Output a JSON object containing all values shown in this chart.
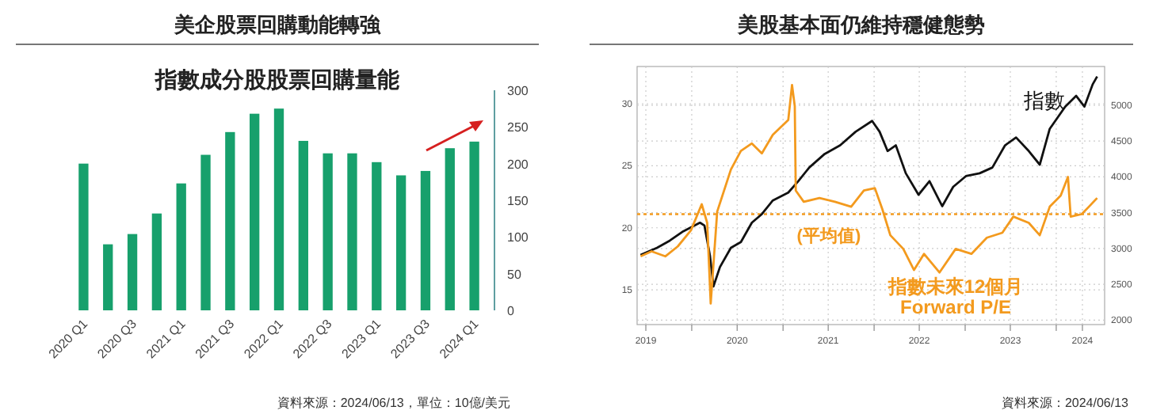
{
  "chart_data": [
    {
      "type": "bar",
      "title": "美企股票回購動能轉強",
      "subtitle": "指數成分股股票回購量能",
      "categories": [
        "2020 Q1",
        null,
        "2020 Q3",
        null,
        "2021 Q1",
        null,
        "2021 Q3",
        null,
        "2022 Q1",
        null,
        "2022 Q3",
        null,
        "2023 Q1",
        null,
        "2023 Q3",
        null,
        "2024 Q1"
      ],
      "values": [
        200,
        90,
        104,
        132,
        173,
        212,
        243,
        268,
        275,
        231,
        214,
        214,
        202,
        184,
        190,
        221,
        230
      ],
      "color": "#17a06c",
      "ylim": [
        0,
        300
      ],
      "yticks": [
        0,
        50,
        100,
        150,
        200,
        250,
        300
      ],
      "annotations": [
        "資料來源：2024/06/13，單位：10億/美元"
      ]
    },
    {
      "type": "line",
      "title": "美股基本面仍維持穩健態勢",
      "series": [
        {
          "name": "指數",
          "color": "#111111",
          "axis": "y2",
          "x": [
            "2019-06-10",
            "2019-08-15",
            "2019-10-05",
            "2019-11-28",
            "2020-02-03",
            "2020-02-21",
            "2020-03-14",
            "2020-03-28",
            "2020-04-23",
            "2020-06-06",
            "2020-07-16",
            "2020-08-29",
            "2020-10-08",
            "2020-11-21",
            "2021-01-22",
            "2021-03-03",
            "2021-04-16",
            "2021-06-17",
            "2021-08-18",
            "2021-10-19",
            "2021-12-24",
            "2022-01-23",
            "2022-02-24",
            "2022-03-29",
            "2022-05-08",
            "2022-06-28",
            "2022-08-11",
            "2022-10-01",
            "2022-11-14",
            "2023-01-04",
            "2023-02-28",
            "2023-04-20",
            "2023-06-10",
            "2023-07-24",
            "2023-09-13",
            "2023-10-27",
            "2023-12-06",
            "2024-02-06",
            "2024-03-21",
            "2024-04-23",
            "2024-05-26",
            "2024-06-13"
          ],
          "values": [
            2910,
            3010,
            3110,
            3240,
            3360,
            3320,
            2900,
            2470,
            2740,
            3010,
            3090,
            3360,
            3480,
            3670,
            3780,
            3940,
            4130,
            4320,
            4440,
            4630,
            4780,
            4630,
            4360,
            4440,
            4050,
            3750,
            3940,
            3590,
            3860,
            4010,
            4050,
            4130,
            4440,
            4550,
            4360,
            4170,
            4670,
            4980,
            5130,
            4980,
            5290,
            5400
          ]
        },
        {
          "name": "指數未來12個月 Forward P/E",
          "color": "#f39a1e",
          "x": [
            "2019-06-10",
            "2019-07-24",
            "2019-09-17",
            "2019-11-06",
            "2019-12-29",
            "2020-02-10",
            "2020-03-03",
            "2020-03-17",
            "2020-04-12",
            "2020-06-06",
            "2020-07-16",
            "2020-08-29",
            "2020-10-08",
            "2020-11-21",
            "2021-01-22",
            "2021-02-06",
            "2021-02-17",
            "2021-02-21",
            "2021-03-25",
            "2021-05-27",
            "2021-07-28",
            "2021-10-01",
            "2021-11-21",
            "2022-01-04",
            "2022-02-03",
            "2022-03-07",
            "2022-04-28",
            "2022-06-10",
            "2022-07-20",
            "2022-09-20",
            "2022-11-24",
            "2023-01-26",
            "2023-03-29",
            "2023-05-30",
            "2023-07-13",
            "2023-09-13",
            "2023-10-27",
            "2023-12-06",
            "2024-01-19",
            "2024-02-17",
            "2024-02-28",
            "2024-04-12",
            "2024-05-11",
            "2024-06-13"
          ],
          "values": [
            17.7,
            18.1,
            17.7,
            18.5,
            19.8,
            21.9,
            20.4,
            13.9,
            21.3,
            24.7,
            26.2,
            26.8,
            26.0,
            27.5,
            28.7,
            31.5,
            29.8,
            23.0,
            22.1,
            22.4,
            22.1,
            21.7,
            23.0,
            23.2,
            21.5,
            19.4,
            18.3,
            16.6,
            17.9,
            16.4,
            18.3,
            17.9,
            19.2,
            19.6,
            20.9,
            20.4,
            19.4,
            21.7,
            22.6,
            24.1,
            20.9,
            21.1,
            21.7,
            22.4
          ]
        }
      ],
      "xlim": [
        "2019-05-27",
        "2024-07-13"
      ],
      "xticks": [
        {
          "value": "2019-07-01",
          "label": "2019"
        },
        {
          "value": "2020-01-01",
          "label": null
        },
        {
          "value": "2020-07-01",
          "label": "2020"
        },
        {
          "value": "2021-01-01",
          "label": null
        },
        {
          "value": "2021-07-01",
          "label": "2021"
        },
        {
          "value": "2022-01-01",
          "label": null
        },
        {
          "value": "2022-07-01",
          "label": "2022"
        },
        {
          "value": "2023-01-01",
          "label": null
        },
        {
          "value": "2023-07-01",
          "label": "2023"
        },
        {
          "value": "2024-01-01",
          "label": null
        },
        {
          "value": "2024-04-15",
          "label": "2024"
        }
      ],
      "ylim": [
        12.2,
        33
      ],
      "yticks": [
        15,
        20,
        25,
        30
      ],
      "y2lim": [
        1938,
        5540
      ],
      "y2ticks": [
        2000,
        2500,
        3000,
        3500,
        4000,
        4500,
        5000
      ],
      "ref_lines": [
        {
          "axis": "y",
          "value": 21.1,
          "label": "(平均值)",
          "color": "#f39a1e",
          "line_style": "dotted"
        }
      ],
      "grid": true,
      "annotations": [
        "資料來源：2024/06/13"
      ]
    }
  ]
}
